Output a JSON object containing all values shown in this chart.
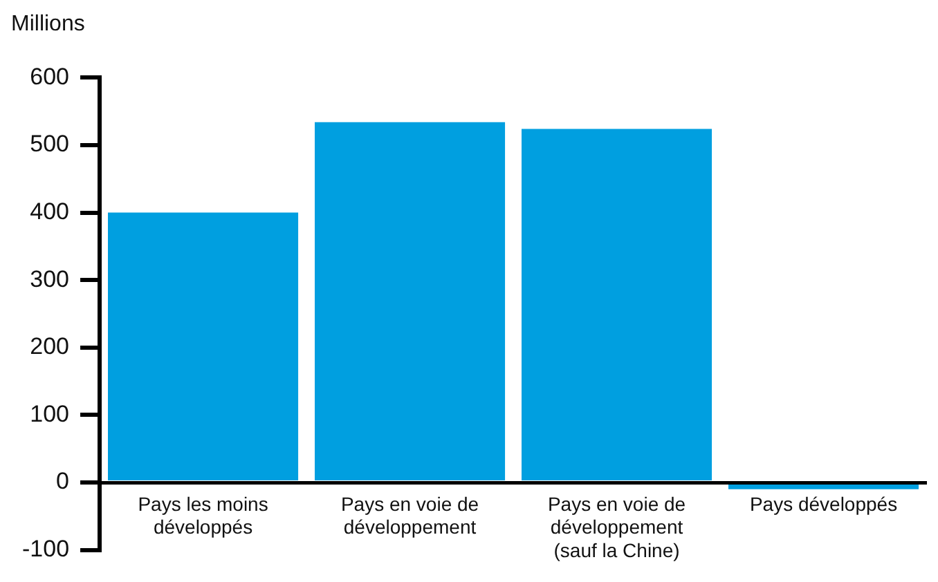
{
  "chart_data": {
    "type": "bar",
    "ylabel": "Millions",
    "categories": [
      "Pays les moins développés",
      "Pays en voie de développement",
      "Pays en voie de développement (sauf la Chine)",
      "Pays développés"
    ],
    "values": [
      400,
      534,
      524,
      -10
    ],
    "color": "#009fe0",
    "ylim": [
      -100,
      600
    ],
    "yticks": [
      -100,
      0,
      100,
      200,
      300,
      400,
      500,
      600
    ],
    "grid": false,
    "legend": false
  }
}
